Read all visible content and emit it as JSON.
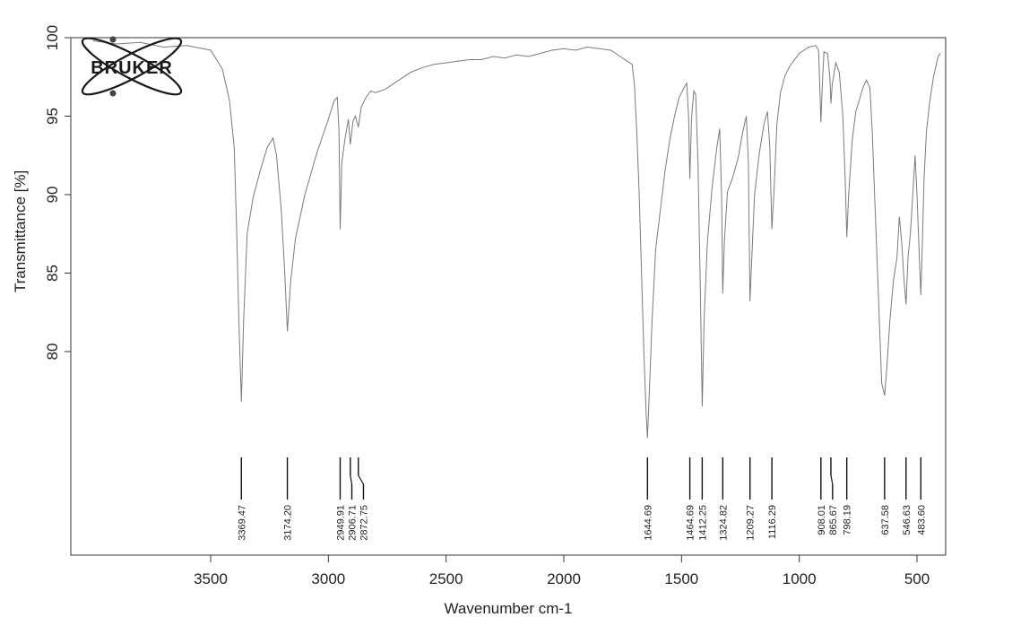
{
  "logo": {
    "text": "BRUKER"
  },
  "chart_data": {
    "type": "line",
    "title": "",
    "xlabel": "Wavenumber cm-1",
    "ylabel": "Transmittance [%]",
    "xlim": [
      4000,
      400
    ],
    "ylim": [
      70,
      100
    ],
    "x_reversed": true,
    "x_ticks": [
      3500,
      3000,
      2500,
      2000,
      1500,
      1000,
      500
    ],
    "x_tick_labels": [
      "3500",
      "3000",
      "2500",
      "2000",
      "1500",
      "1000",
      "500"
    ],
    "y_ticks": [
      100,
      95,
      90,
      85,
      80
    ],
    "y_tick_labels": [
      "100",
      "95",
      "90",
      "85",
      "80"
    ],
    "grid": false,
    "legend": "none",
    "series": [
      {
        "color": "#7a7a7a",
        "points": [
          [
            4000,
            99.8
          ],
          [
            3900,
            99.6
          ],
          [
            3800,
            99.7
          ],
          [
            3700,
            99.4
          ],
          [
            3600,
            99.5
          ],
          [
            3500,
            99.2
          ],
          [
            3450,
            98.0
          ],
          [
            3420,
            96.0
          ],
          [
            3400,
            93.0
          ],
          [
            3390,
            88.0
          ],
          [
            3380,
            82.0
          ],
          [
            3369.47,
            76.8
          ],
          [
            3360,
            82.0
          ],
          [
            3345,
            87.5
          ],
          [
            3320,
            89.8
          ],
          [
            3290,
            91.5
          ],
          [
            3260,
            93.0
          ],
          [
            3235,
            93.6
          ],
          [
            3220,
            92.5
          ],
          [
            3200,
            89.0
          ],
          [
            3185,
            85.0
          ],
          [
            3174.2,
            81.3
          ],
          [
            3160,
            84.5
          ],
          [
            3140,
            87.2
          ],
          [
            3100,
            90.0
          ],
          [
            3050,
            92.6
          ],
          [
            3000,
            94.8
          ],
          [
            2975,
            96.0
          ],
          [
            2962,
            96.2
          ],
          [
            2955,
            94.0
          ],
          [
            2949.91,
            87.8
          ],
          [
            2943,
            92.0
          ],
          [
            2930,
            93.5
          ],
          [
            2915,
            94.8
          ],
          [
            2906.71,
            93.2
          ],
          [
            2895,
            94.7
          ],
          [
            2885,
            95.0
          ],
          [
            2872.75,
            94.3
          ],
          [
            2860,
            95.6
          ],
          [
            2840,
            96.2
          ],
          [
            2820,
            96.6
          ],
          [
            2800,
            96.5
          ],
          [
            2760,
            96.7
          ],
          [
            2700,
            97.3
          ],
          [
            2650,
            97.8
          ],
          [
            2600,
            98.1
          ],
          [
            2550,
            98.3
          ],
          [
            2500,
            98.4
          ],
          [
            2450,
            98.5
          ],
          [
            2400,
            98.6
          ],
          [
            2350,
            98.6
          ],
          [
            2300,
            98.8
          ],
          [
            2250,
            98.7
          ],
          [
            2200,
            98.9
          ],
          [
            2150,
            98.8
          ],
          [
            2100,
            99.0
          ],
          [
            2050,
            99.2
          ],
          [
            2000,
            99.3
          ],
          [
            1950,
            99.2
          ],
          [
            1900,
            99.4
          ],
          [
            1850,
            99.3
          ],
          [
            1800,
            99.2
          ],
          [
            1760,
            98.8
          ],
          [
            1730,
            98.5
          ],
          [
            1710,
            98.3
          ],
          [
            1700,
            97.0
          ],
          [
            1690,
            94.0
          ],
          [
            1680,
            90.0
          ],
          [
            1670,
            85.0
          ],
          [
            1660,
            80.0
          ],
          [
            1650,
            76.0
          ],
          [
            1644.69,
            74.5
          ],
          [
            1638,
            77.0
          ],
          [
            1625,
            82.0
          ],
          [
            1610,
            86.5
          ],
          [
            1590,
            89.0
          ],
          [
            1570,
            91.5
          ],
          [
            1550,
            93.5
          ],
          [
            1530,
            95.0
          ],
          [
            1510,
            96.2
          ],
          [
            1490,
            96.8
          ],
          [
            1478,
            97.1
          ],
          [
            1470,
            95.0
          ],
          [
            1464.69,
            91.0
          ],
          [
            1458,
            94.8
          ],
          [
            1448,
            96.6
          ],
          [
            1440,
            96.4
          ],
          [
            1430,
            92.0
          ],
          [
            1420,
            84.0
          ],
          [
            1412.25,
            76.5
          ],
          [
            1404,
            82.0
          ],
          [
            1390,
            87.0
          ],
          [
            1370,
            90.5
          ],
          [
            1350,
            93.0
          ],
          [
            1338,
            94.2
          ],
          [
            1330,
            90.0
          ],
          [
            1324.82,
            83.7
          ],
          [
            1318,
            87.0
          ],
          [
            1305,
            90.2
          ],
          [
            1285,
            91.0
          ],
          [
            1260,
            92.3
          ],
          [
            1240,
            94.0
          ],
          [
            1225,
            95.0
          ],
          [
            1216,
            92.0
          ],
          [
            1209.27,
            83.2
          ],
          [
            1200,
            86.5
          ],
          [
            1190,
            90.0
          ],
          [
            1170,
            92.6
          ],
          [
            1150,
            94.5
          ],
          [
            1135,
            95.3
          ],
          [
            1125,
            93.0
          ],
          [
            1116.29,
            87.8
          ],
          [
            1108,
            90.0
          ],
          [
            1095,
            94.5
          ],
          [
            1080,
            96.5
          ],
          [
            1060,
            97.6
          ],
          [
            1040,
            98.2
          ],
          [
            1000,
            99.0
          ],
          [
            960,
            99.4
          ],
          [
            930,
            99.5
          ],
          [
            918,
            99.2
          ],
          [
            912,
            96.5
          ],
          [
            908.01,
            94.6
          ],
          [
            902,
            97.0
          ],
          [
            895,
            99.1
          ],
          [
            880,
            99.0
          ],
          [
            870,
            97.5
          ],
          [
            865.67,
            95.8
          ],
          [
            860,
            97.0
          ],
          [
            845,
            98.4
          ],
          [
            830,
            97.8
          ],
          [
            815,
            95.0
          ],
          [
            805,
            91.0
          ],
          [
            798.19,
            87.3
          ],
          [
            790,
            90.0
          ],
          [
            775,
            93.5
          ],
          [
            760,
            95.3
          ],
          [
            745,
            96.0
          ],
          [
            730,
            96.8
          ],
          [
            715,
            97.3
          ],
          [
            700,
            96.8
          ],
          [
            690,
            94.0
          ],
          [
            680,
            90.0
          ],
          [
            665,
            84.0
          ],
          [
            650,
            78.0
          ],
          [
            637.58,
            77.2
          ],
          [
            628,
            79.0
          ],
          [
            615,
            82.0
          ],
          [
            600,
            84.5
          ],
          [
            585,
            86.0
          ],
          [
            575,
            88.6
          ],
          [
            565,
            87.0
          ],
          [
            555,
            84.5
          ],
          [
            546.63,
            83.0
          ],
          [
            538,
            86.0
          ],
          [
            528,
            87.5
          ],
          [
            518,
            90.0
          ],
          [
            508,
            92.5
          ],
          [
            500,
            90.0
          ],
          [
            490,
            86.0
          ],
          [
            483.6,
            83.6
          ],
          [
            478,
            86.5
          ],
          [
            470,
            91.0
          ],
          [
            460,
            94.0
          ],
          [
            445,
            96.0
          ],
          [
            430,
            97.5
          ],
          [
            410,
            98.8
          ],
          [
            400,
            99.0
          ]
        ]
      }
    ],
    "peaks": [
      {
        "x": 3369.47,
        "label": "3369.47"
      },
      {
        "x": 3174.2,
        "label": "3174.20"
      },
      {
        "x": 2949.91,
        "label": "2949.91"
      },
      {
        "x": 2906.71,
        "label": "2906.71"
      },
      {
        "x": 2872.75,
        "label": "2872.75"
      },
      {
        "x": 1644.69,
        "label": "1644.69"
      },
      {
        "x": 1464.69,
        "label": "1464.69"
      },
      {
        "x": 1412.25,
        "label": "1412.25"
      },
      {
        "x": 1324.82,
        "label": "1324.82"
      },
      {
        "x": 1209.27,
        "label": "1209.27"
      },
      {
        "x": 1116.29,
        "label": "1116.29"
      },
      {
        "x": 908.01,
        "label": "908.01"
      },
      {
        "x": 865.67,
        "label": "865.67"
      },
      {
        "x": 798.19,
        "label": "798.19"
      },
      {
        "x": 637.58,
        "label": "637.58"
      },
      {
        "x": 546.63,
        "label": "546.63"
      },
      {
        "x": 483.6,
        "label": "483.60"
      }
    ]
  }
}
